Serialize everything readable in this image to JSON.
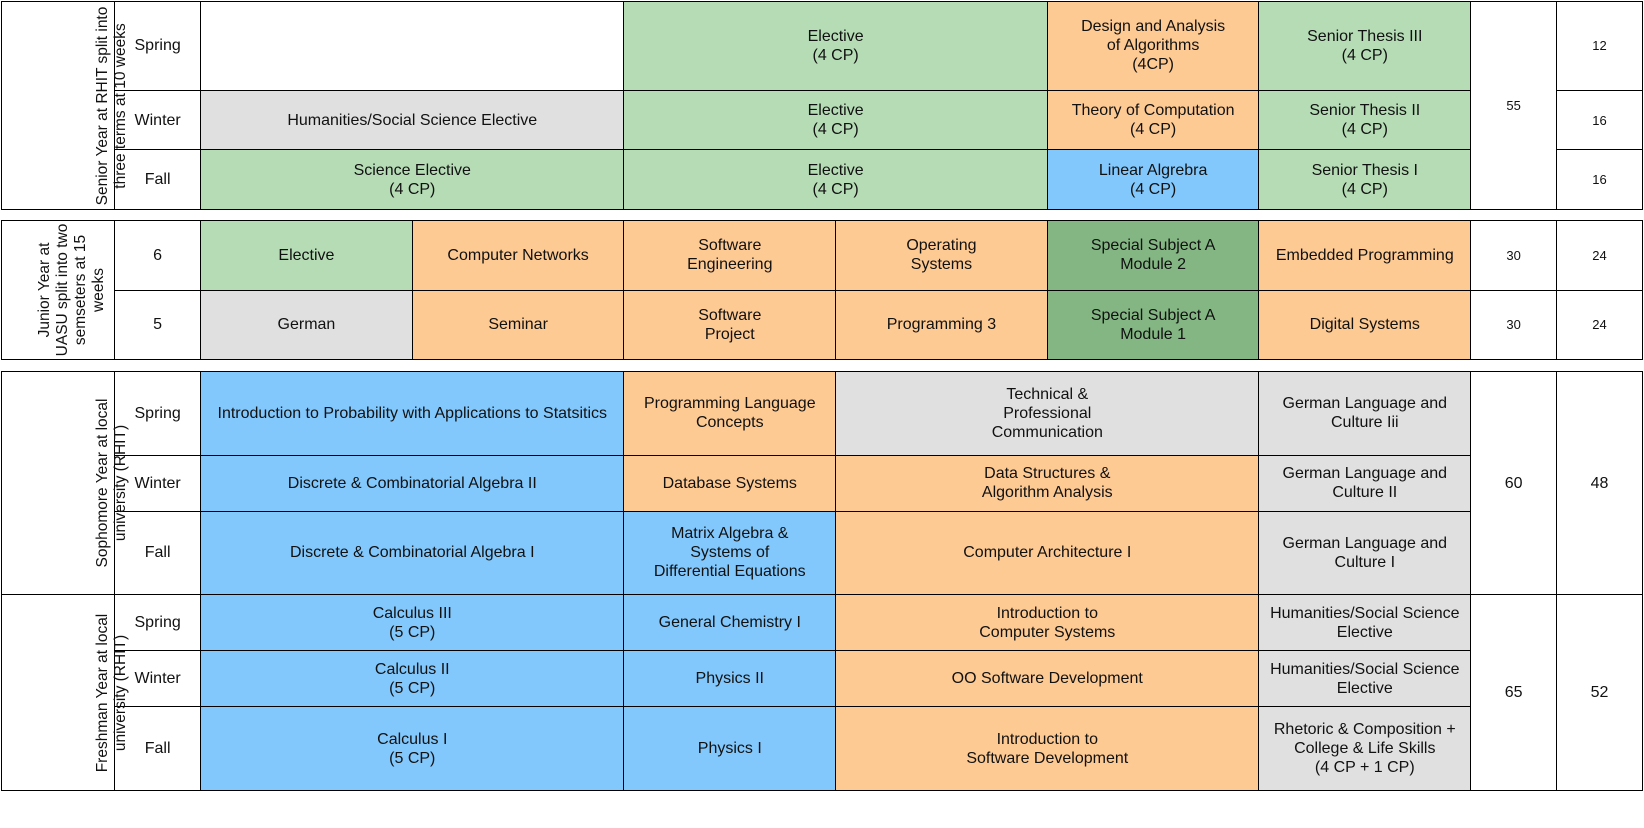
{
  "senior": {
    "year_label": "Senior Year at RHIT split into\nthree terms  at 10 weeks",
    "total": "55",
    "rows": [
      {
        "term": "Spring",
        "c1": "",
        "c2": "Elective\n(4 CP)",
        "c3": "Design and Analysis\nof Algorithms\n(4CP)",
        "c4": "Senior Thesis III\n(4 CP)",
        "hours": "12"
      },
      {
        "term": "Winter",
        "c1": "Humanities/Social Science Elective",
        "c2": "Elective\n(4 CP)",
        "c3": "Theory of Computation\n(4 CP)",
        "c4": "Senior Thesis II\n(4 CP)",
        "hours": "16"
      },
      {
        "term": "Fall",
        "c1": "Science Elective\n(4 CP)",
        "c2": "Elective\n(4 CP)",
        "c3": "Linear Algrebra\n(4 CP)",
        "c4": "Senior Thesis I\n(4 CP)",
        "hours": "16"
      }
    ]
  },
  "junior": {
    "year_label": "Junior Year at\nUASU split into two\nsemseters at 15\nweeks",
    "rows": [
      {
        "term": "6",
        "c1": "Elective",
        "c2": "Computer  Networks",
        "c3": "Software\nEngineering",
        "c4": "Operating\nSystems",
        "c5": "Special Subject A\nModule 2",
        "c6": "Embedded Programming",
        "total": "30",
        "hours": "24"
      },
      {
        "term": "5",
        "c1": "German",
        "c2": "Seminar",
        "c3": "Software\nProject",
        "c4": "Programming 3",
        "c5": "Special Subject A\nModule 1",
        "c6": "Digital Systems",
        "total": "30",
        "hours": "24"
      }
    ]
  },
  "sophomore": {
    "year_label": "Sophomore Year at local\nuniversity (RHIT)",
    "total": "60",
    "hours": "48",
    "rows": [
      {
        "term": "Spring",
        "c1": "Introduction to Probability with Applications to Statsitics",
        "c2": "Programming Language\nConcepts",
        "c3": "Technical &\nProfessional\nCommunication",
        "c4": "German Language and\nCulture Iii"
      },
      {
        "term": "Winter",
        "c1": "Discrete & Combinatorial Algebra II",
        "c2": "Database Systems",
        "c3": "Data Structures &\nAlgorithm Analysis",
        "c4": "German Language and\nCulture II"
      },
      {
        "term": "Fall",
        "c1": "Discrete & Combinatorial Algebra I",
        "c2": "Matrix Algebra &\nSystems of\nDifferential Equations",
        "c3": "Computer Architecture I",
        "c4": "German Language and\nCulture I"
      }
    ]
  },
  "freshman": {
    "year_label": "Freshman Year at local\nuniversity (RHIT)",
    "total": "65",
    "hours": "52",
    "rows": [
      {
        "term": "Spring",
        "c1": "Calculus III\n(5 CP)",
        "c2": "General Chemistry I",
        "c3": "Introduction to\nComputer Systems",
        "c4": "Humanities/Social Science\nElective"
      },
      {
        "term": "Winter",
        "c1": "Calculus II\n(5 CP)",
        "c2": "Physics II",
        "c3": "OO Software Development",
        "c4": "Humanities/Social Science\nElective"
      },
      {
        "term": "Fall",
        "c1": "Calculus I\n(5 CP)",
        "c2": "Physics I",
        "c3": "Introduction to\nSoftware Development",
        "c4": "Rhetoric & Composition +\nCollege & Life Skills\n(4 CP + 1 CP)"
      }
    ]
  },
  "colors": {
    "green": "#b6dcb6",
    "dark_green": "#84b683",
    "orange": "#fdca94",
    "blue": "#82c8fc",
    "gray": "#e0e0e0"
  }
}
